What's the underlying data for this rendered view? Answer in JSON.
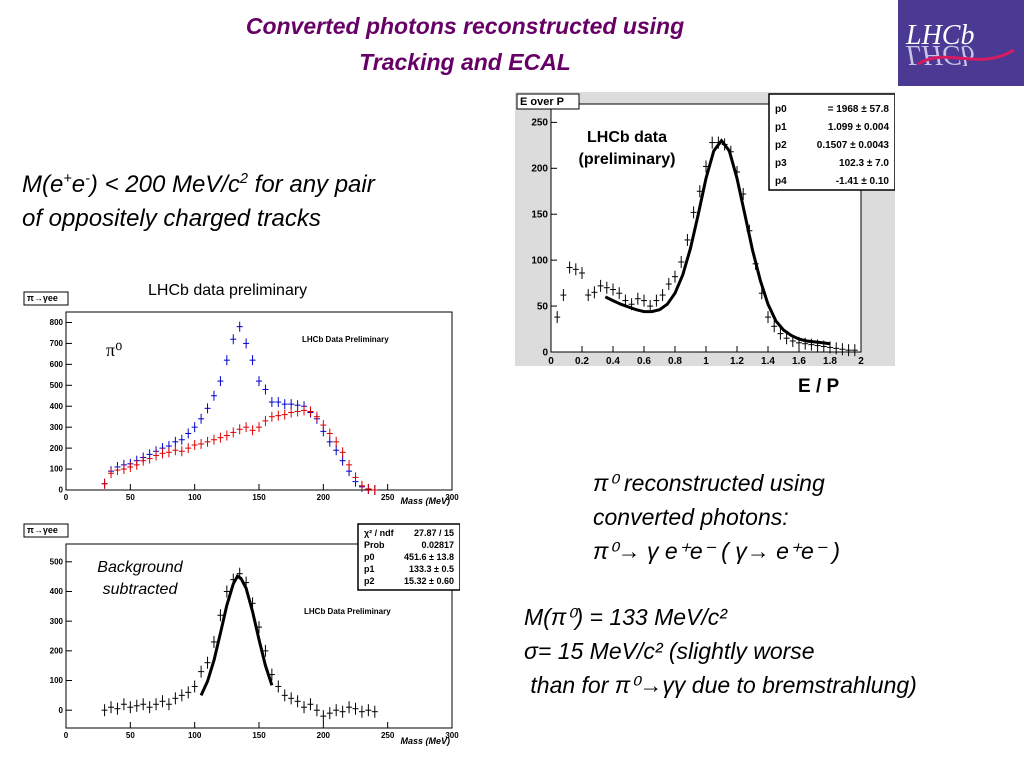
{
  "title_line1": "Converted photons reconstructed using",
  "title_line2": "Tracking and ECAL",
  "logo_text": "LHCb",
  "selection_text": {
    "line1_prefix": "M(e",
    "line1_sup1": "+",
    "line1_mid": "e",
    "line1_sup2": "-",
    "line1_after": ") < 200 MeV/c",
    "line1_sup3": "2",
    "line1_suffix": " for any pair",
    "line2": "of oppositely charged tracks"
  },
  "prelim_label": "LHCb data preliminary",
  "ep_axis_label": "E / P",
  "pi0_text": {
    "line1": "π⁰ reconstructed using",
    "line2": "converted photons:",
    "line3": "π⁰→ γ e⁺e⁻ ( γ→ e⁺e⁻ )"
  },
  "results_text": {
    "line1": "M(π⁰) = 133 MeV/c²",
    "line2": "σ= 15 MeV/c² (slightly worse",
    "line3": " than for π⁰→γγ due to bremstrahlung)"
  },
  "colors": {
    "title": "#660066",
    "signal": "#0000cc",
    "background": "#dd0000"
  },
  "chart_data": [
    {
      "type": "scatter",
      "frame_label": "E over P",
      "annotation": "LHCb data\n(preliminary)",
      "xlim": [
        0,
        2
      ],
      "ylim": [
        0,
        270
      ],
      "x_ticks": [
        0,
        0.2,
        0.4,
        0.6,
        0.8,
        1,
        1.2,
        1.4,
        1.6,
        1.8,
        2
      ],
      "y_ticks": [
        0,
        50,
        100,
        150,
        200,
        250
      ],
      "stats": [
        {
          "name": "p0",
          "value": "= 1968 ± 57.8"
        },
        {
          "name": "p1",
          "value": "1.099 ± 0.004"
        },
        {
          "name": "p2",
          "value": "0.1507 ± 0.0043"
        },
        {
          "name": "p3",
          "value": "102.3 ± 7.0"
        },
        {
          "name": "p4",
          "value": "-1.41 ± 0.10"
        }
      ],
      "points_x": [
        0.04,
        0.08,
        0.12,
        0.16,
        0.2,
        0.24,
        0.28,
        0.32,
        0.36,
        0.4,
        0.44,
        0.48,
        0.52,
        0.56,
        0.6,
        0.64,
        0.68,
        0.72,
        0.76,
        0.8,
        0.84,
        0.88,
        0.92,
        0.96,
        1.0,
        1.04,
        1.08,
        1.12,
        1.16,
        1.2,
        1.24,
        1.28,
        1.32,
        1.36,
        1.4,
        1.44,
        1.48,
        1.52,
        1.56,
        1.6,
        1.64,
        1.68,
        1.72,
        1.76,
        1.8,
        1.84,
        1.88,
        1.92,
        1.96
      ],
      "points_y": [
        38,
        62,
        92,
        90,
        86,
        62,
        65,
        72,
        70,
        68,
        64,
        56,
        52,
        58,
        56,
        50,
        56,
        62,
        74,
        82,
        98,
        122,
        152,
        175,
        202,
        228,
        228,
        226,
        218,
        196,
        172,
        132,
        96,
        64,
        38,
        28,
        20,
        15,
        12,
        10,
        9,
        8,
        7,
        6,
        5,
        4,
        3,
        2,
        2
      ],
      "fit_x": [
        0.35,
        0.4,
        0.45,
        0.5,
        0.55,
        0.6,
        0.65,
        0.7,
        0.75,
        0.8,
        0.85,
        0.9,
        0.95,
        1.0,
        1.05,
        1.1,
        1.15,
        1.2,
        1.25,
        1.3,
        1.35,
        1.4,
        1.45,
        1.5,
        1.55,
        1.6,
        1.65,
        1.7,
        1.75,
        1.8
      ],
      "fit_y": [
        60,
        56,
        52,
        49,
        46,
        44,
        44,
        46,
        52,
        64,
        84,
        113,
        150,
        189,
        219,
        230,
        219,
        189,
        150,
        111,
        78,
        52,
        34,
        24,
        18,
        14,
        12,
        11,
        10,
        9
      ]
    },
    {
      "type": "scatter",
      "frame_label": "π→γee",
      "annotation": "LHCb Data Preliminary",
      "symbol": "π⁰",
      "xlabel": "Mass (MeV)",
      "xlim": [
        0,
        300
      ],
      "ylim": [
        0,
        850
      ],
      "x_ticks": [
        0,
        50,
        100,
        150,
        200,
        250,
        300
      ],
      "y_ticks": [
        0,
        100,
        200,
        300,
        400,
        500,
        600,
        700,
        800
      ],
      "series": [
        {
          "color": "#0000cc",
          "x": [
            30,
            35,
            40,
            45,
            50,
            55,
            60,
            65,
            70,
            75,
            80,
            85,
            90,
            95,
            100,
            105,
            110,
            115,
            120,
            125,
            130,
            135,
            140,
            145,
            150,
            155,
            160,
            165,
            170,
            175,
            180,
            185,
            190,
            195,
            200,
            205,
            210,
            215,
            220,
            225,
            230,
            235,
            240
          ],
          "y": [
            30,
            90,
            110,
            120,
            125,
            140,
            155,
            170,
            185,
            200,
            210,
            230,
            240,
            270,
            300,
            340,
            390,
            450,
            520,
            620,
            720,
            780,
            700,
            620,
            520,
            480,
            420,
            420,
            410,
            410,
            405,
            400,
            370,
            340,
            280,
            230,
            190,
            140,
            90,
            40,
            15,
            5,
            0
          ]
        },
        {
          "color": "#dd0000",
          "x": [
            30,
            35,
            40,
            45,
            50,
            55,
            60,
            65,
            70,
            75,
            80,
            85,
            90,
            95,
            100,
            105,
            110,
            115,
            120,
            125,
            130,
            135,
            140,
            145,
            150,
            155,
            160,
            165,
            170,
            175,
            180,
            185,
            190,
            195,
            200,
            205,
            210,
            215,
            220,
            225,
            230,
            235,
            240
          ],
          "y": [
            30,
            80,
            95,
            100,
            110,
            120,
            140,
            150,
            165,
            175,
            180,
            190,
            185,
            200,
            215,
            220,
            230,
            240,
            250,
            260,
            275,
            290,
            300,
            285,
            300,
            330,
            350,
            355,
            360,
            370,
            375,
            380,
            375,
            350,
            310,
            270,
            230,
            180,
            120,
            60,
            20,
            5,
            0
          ]
        }
      ]
    },
    {
      "type": "scatter",
      "frame_label": "π→γee",
      "annotation": "LHCb Data Preliminary",
      "side_label": "Background\nsubtracted",
      "xlabel": "Mass (MeV)",
      "xlim": [
        0,
        300
      ],
      "ylim": [
        -60,
        560
      ],
      "x_ticks": [
        0,
        50,
        100,
        150,
        200,
        250,
        300
      ],
      "y_ticks": [
        0,
        100,
        200,
        300,
        400,
        500
      ],
      "stats": [
        {
          "name": "χ² / ndf",
          "value": "27.87 / 15"
        },
        {
          "name": "Prob",
          "value": "0.02817"
        },
        {
          "name": "p0",
          "value": "451.6 ± 13.8"
        },
        {
          "name": "p1",
          "value": "133.3 ± 0.5"
        },
        {
          "name": "p2",
          "value": "15.32 ± 0.60"
        }
      ],
      "points_x": [
        30,
        35,
        40,
        45,
        50,
        55,
        60,
        65,
        70,
        75,
        80,
        85,
        90,
        95,
        100,
        105,
        110,
        115,
        120,
        125,
        130,
        135,
        140,
        145,
        150,
        155,
        160,
        165,
        170,
        175,
        180,
        185,
        190,
        195,
        200,
        205,
        210,
        215,
        220,
        225,
        230,
        235,
        240
      ],
      "points_y": [
        0,
        10,
        5,
        20,
        10,
        15,
        20,
        10,
        20,
        30,
        20,
        40,
        50,
        60,
        80,
        130,
        160,
        230,
        320,
        400,
        440,
        460,
        430,
        360,
        280,
        200,
        120,
        80,
        50,
        40,
        30,
        10,
        20,
        0,
        -20,
        -10,
        0,
        -5,
        10,
        5,
        -5,
        0,
        -5
      ],
      "fit_x": [
        105,
        110,
        115,
        120,
        125,
        130,
        133.3,
        136,
        140,
        145,
        150,
        155,
        160
      ],
      "fit_y": [
        50,
        97,
        168,
        259,
        353,
        426,
        452,
        444,
        411,
        332,
        238,
        151,
        84
      ]
    }
  ]
}
